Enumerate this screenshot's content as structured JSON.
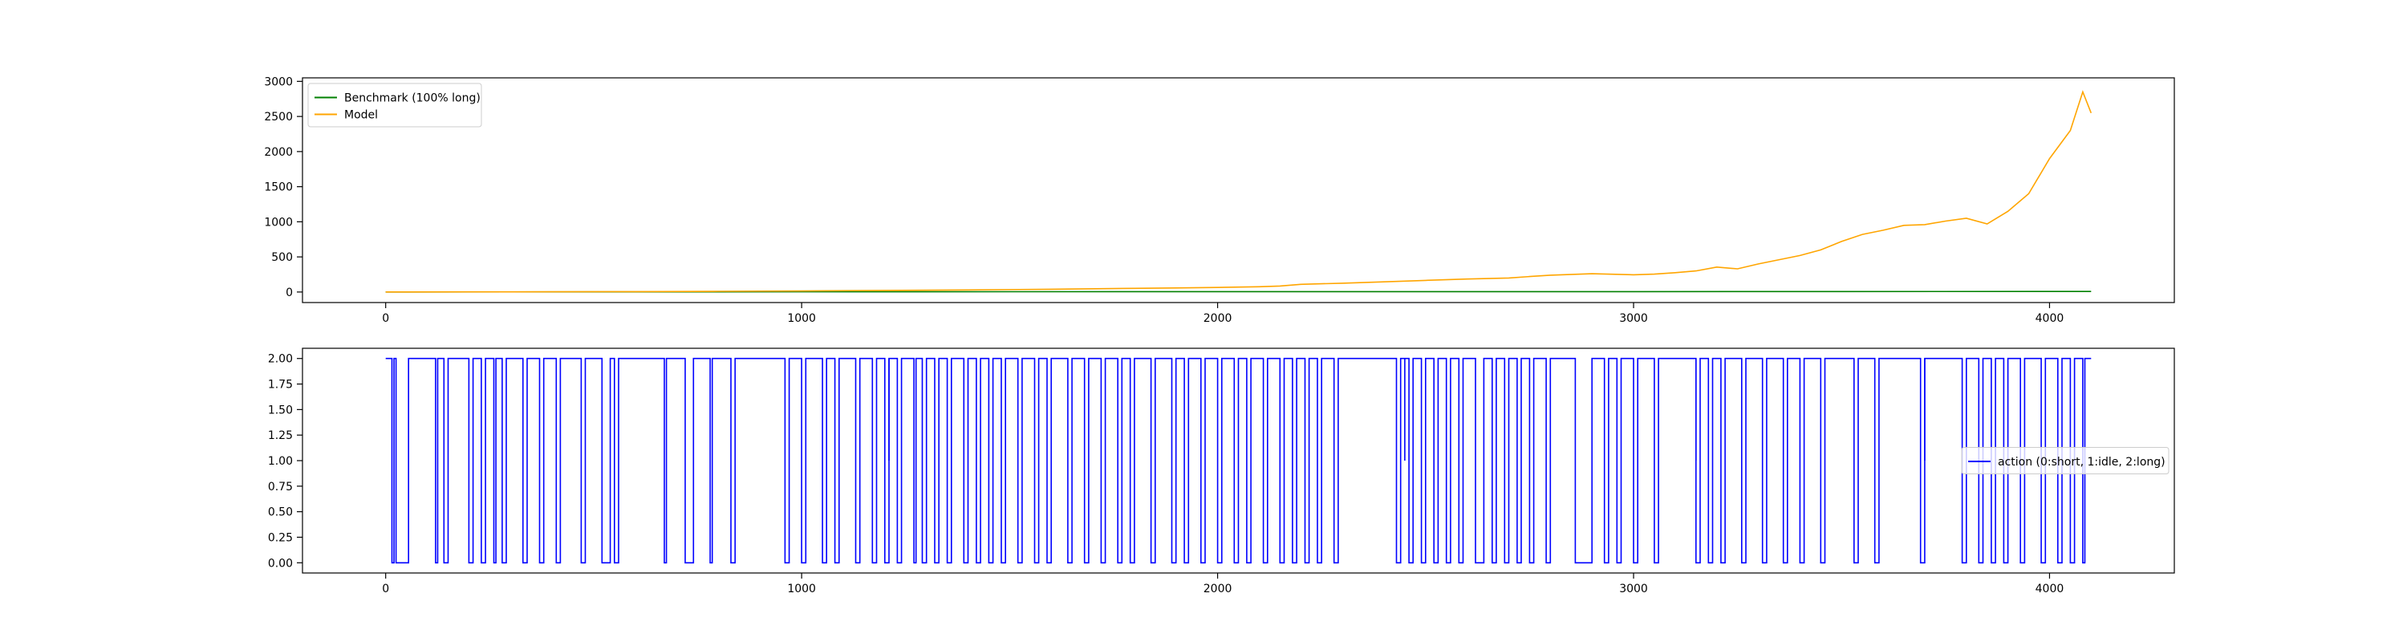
{
  "colors": {
    "benchmark": "#008000",
    "model": "#FFA500",
    "action": "#0000FF",
    "axes": "#000000",
    "legend_border": "#CCCCCC"
  },
  "chart_data": [
    {
      "type": "line",
      "title": "",
      "xlabel": "",
      "ylabel": "",
      "xlim": [
        -200,
        4300
      ],
      "ylim": [
        -150,
        3050
      ],
      "x_ticks": [
        0,
        1000,
        2000,
        3000,
        4000
      ],
      "x_tick_labels": [
        "0",
        "1000",
        "2000",
        "3000",
        "4000"
      ],
      "y_ticks": [
        0,
        500,
        1000,
        1500,
        2000,
        2500,
        3000
      ],
      "y_tick_labels": [
        "0",
        "500",
        "1000",
        "1500",
        "2000",
        "2500",
        "3000"
      ],
      "grid": false,
      "legend_position": "upper left",
      "series": [
        {
          "name": "Benchmark (100% long)",
          "color": "#008000",
          "x": [
            0,
            500,
            1000,
            1500,
            2000,
            2500,
            3000,
            3500,
            4000,
            4100
          ],
          "y": [
            1,
            2,
            3,
            4,
            5,
            6,
            6,
            7,
            8,
            8
          ]
        },
        {
          "name": "Model",
          "color": "#FFA500",
          "x": [
            0,
            200,
            400,
            600,
            800,
            1000,
            1200,
            1400,
            1600,
            1800,
            1900,
            2000,
            2100,
            2150,
            2200,
            2300,
            2400,
            2500,
            2600,
            2700,
            2750,
            2800,
            2900,
            3000,
            3050,
            3100,
            3150,
            3200,
            3250,
            3300,
            3350,
            3400,
            3450,
            3500,
            3550,
            3600,
            3650,
            3700,
            3750,
            3800,
            3850,
            3900,
            3950,
            4000,
            4050,
            4080,
            4100
          ],
          "y": [
            1,
            2,
            3,
            6,
            10,
            15,
            22,
            30,
            40,
            52,
            58,
            65,
            75,
            85,
            110,
            125,
            145,
            165,
            185,
            200,
            220,
            240,
            260,
            245,
            255,
            275,
            300,
            355,
            330,
            400,
            460,
            520,
            600,
            720,
            820,
            880,
            950,
            960,
            1010,
            1050,
            970,
            1150,
            1400,
            1900,
            2300,
            2850,
            2550
          ]
        }
      ]
    },
    {
      "type": "line",
      "title": "",
      "xlabel": "",
      "ylabel": "",
      "xlim": [
        -200,
        4300
      ],
      "ylim": [
        -0.1,
        2.1
      ],
      "x_ticks": [
        0,
        1000,
        2000,
        3000,
        4000
      ],
      "x_tick_labels": [
        "0",
        "1000",
        "2000",
        "3000",
        "4000"
      ],
      "y_ticks": [
        0,
        0.25,
        0.5,
        0.75,
        1.0,
        1.25,
        1.5,
        1.75,
        2.0
      ],
      "y_tick_labels": [
        "0.00",
        "0.25",
        "0.50",
        "0.75",
        "1.00",
        "1.25",
        "1.50",
        "1.75",
        "2.00"
      ],
      "grid": false,
      "legend_position": "center right",
      "series": [
        {
          "name": "action (0:short, 1:idle, 2:long)",
          "color": "#0000FF",
          "steps": [
            [
              0,
              2
            ],
            [
              15,
              0
            ],
            [
              20,
              2
            ],
            [
              25,
              0
            ],
            [
              55,
              2
            ],
            [
              120,
              0
            ],
            [
              125,
              2
            ],
            [
              140,
              0
            ],
            [
              150,
              2
            ],
            [
              200,
              0
            ],
            [
              210,
              2
            ],
            [
              230,
              0
            ],
            [
              240,
              2
            ],
            [
              260,
              0
            ],
            [
              265,
              2
            ],
            [
              280,
              0
            ],
            [
              290,
              2
            ],
            [
              330,
              0
            ],
            [
              340,
              2
            ],
            [
              370,
              0
            ],
            [
              380,
              2
            ],
            [
              410,
              0
            ],
            [
              420,
              2
            ],
            [
              470,
              0
            ],
            [
              480,
              2
            ],
            [
              520,
              0
            ],
            [
              540,
              2
            ],
            [
              550,
              0
            ],
            [
              560,
              2
            ],
            [
              670,
              0
            ],
            [
              675,
              2
            ],
            [
              720,
              0
            ],
            [
              740,
              2
            ],
            [
              780,
              0
            ],
            [
              785,
              2
            ],
            [
              830,
              0
            ],
            [
              840,
              2
            ],
            [
              960,
              0
            ],
            [
              970,
              2
            ],
            [
              1000,
              0
            ],
            [
              1010,
              2
            ],
            [
              1050,
              0
            ],
            [
              1060,
              2
            ],
            [
              1080,
              0
            ],
            [
              1090,
              2
            ],
            [
              1130,
              0
            ],
            [
              1140,
              2
            ],
            [
              1170,
              0
            ],
            [
              1180,
              2
            ],
            [
              1200,
              0
            ],
            [
              1210,
              2
            ],
            [
              1230,
              0
            ],
            [
              1240,
              2
            ],
            [
              1270,
              0
            ],
            [
              1275,
              2
            ],
            [
              1290,
              0
            ],
            [
              1300,
              2
            ],
            [
              1320,
              0
            ],
            [
              1330,
              2
            ],
            [
              1350,
              0
            ],
            [
              1360,
              2
            ],
            [
              1390,
              0
            ],
            [
              1400,
              2
            ],
            [
              1420,
              0
            ],
            [
              1430,
              2
            ],
            [
              1450,
              0
            ],
            [
              1460,
              2
            ],
            [
              1480,
              0
            ],
            [
              1490,
              2
            ],
            [
              1520,
              0
            ],
            [
              1530,
              2
            ],
            [
              1560,
              0
            ],
            [
              1570,
              2
            ],
            [
              1590,
              0
            ],
            [
              1600,
              2
            ],
            [
              1640,
              0
            ],
            [
              1650,
              2
            ],
            [
              1680,
              0
            ],
            [
              1690,
              2
            ],
            [
              1720,
              0
            ],
            [
              1730,
              2
            ],
            [
              1760,
              0
            ],
            [
              1770,
              2
            ],
            [
              1790,
              0
            ],
            [
              1800,
              2
            ],
            [
              1840,
              0
            ],
            [
              1850,
              2
            ],
            [
              1890,
              0
            ],
            [
              1900,
              2
            ],
            [
              1920,
              0
            ],
            [
              1930,
              2
            ],
            [
              1960,
              0
            ],
            [
              1970,
              2
            ],
            [
              2000,
              0
            ],
            [
              2010,
              2
            ],
            [
              2040,
              0
            ],
            [
              2050,
              2
            ],
            [
              2070,
              0
            ],
            [
              2080,
              2
            ],
            [
              2110,
              0
            ],
            [
              2120,
              2
            ],
            [
              2150,
              0
            ],
            [
              2160,
              2
            ],
            [
              2180,
              0
            ],
            [
              2190,
              2
            ],
            [
              2210,
              0
            ],
            [
              2220,
              2
            ],
            [
              2240,
              0
            ],
            [
              2250,
              2
            ],
            [
              2280,
              0
            ],
            [
              2290,
              2
            ],
            [
              2430,
              0
            ],
            [
              2440,
              2
            ],
            [
              2460,
              0
            ],
            [
              2470,
              2
            ],
            [
              2490,
              0
            ],
            [
              2500,
              2
            ],
            [
              2520,
              0
            ],
            [
              2530,
              2
            ],
            [
              2550,
              0
            ],
            [
              2560,
              2
            ],
            [
              2580,
              0
            ],
            [
              2590,
              2
            ],
            [
              2620,
              0
            ],
            [
              2640,
              2
            ],
            [
              2660,
              0
            ],
            [
              2670,
              2
            ],
            [
              2690,
              0
            ],
            [
              2700,
              2
            ],
            [
              2720,
              0
            ],
            [
              2730,
              2
            ],
            [
              2750,
              0
            ],
            [
              2760,
              2
            ],
            [
              2790,
              0
            ],
            [
              2800,
              2
            ],
            [
              2860,
              0
            ],
            [
              2900,
              2
            ],
            [
              2930,
              0
            ],
            [
              2940,
              2
            ],
            [
              2960,
              0
            ],
            [
              2970,
              2
            ],
            [
              3000,
              0
            ],
            [
              3010,
              2
            ],
            [
              3050,
              0
            ],
            [
              3060,
              2
            ],
            [
              3150,
              0
            ],
            [
              3160,
              2
            ],
            [
              3180,
              0
            ],
            [
              3190,
              2
            ],
            [
              3210,
              0
            ],
            [
              3220,
              2
            ],
            [
              3260,
              0
            ],
            [
              3270,
              2
            ],
            [
              3310,
              0
            ],
            [
              3320,
              2
            ],
            [
              3360,
              0
            ],
            [
              3370,
              2
            ],
            [
              3400,
              0
            ],
            [
              3410,
              2
            ],
            [
              3450,
              0
            ],
            [
              3460,
              2
            ],
            [
              3530,
              0
            ],
            [
              3540,
              2
            ],
            [
              3580,
              0
            ],
            [
              3590,
              2
            ],
            [
              3690,
              0
            ],
            [
              3700,
              2
            ],
            [
              3790,
              0
            ],
            [
              3800,
              2
            ],
            [
              3830,
              0
            ],
            [
              3840,
              2
            ],
            [
              3860,
              0
            ],
            [
              3870,
              2
            ],
            [
              3890,
              0
            ],
            [
              3900,
              2
            ],
            [
              3930,
              0
            ],
            [
              3940,
              2
            ],
            [
              3980,
              0
            ],
            [
              3990,
              2
            ],
            [
              4020,
              0
            ],
            [
              4030,
              2
            ],
            [
              4050,
              0
            ],
            [
              4060,
              2
            ],
            [
              4080,
              0
            ],
            [
              4085,
              2
            ],
            [
              4100,
              2
            ]
          ],
          "idle_spikes": [
            1210,
            2450,
            3150,
            3700
          ]
        }
      ]
    }
  ]
}
